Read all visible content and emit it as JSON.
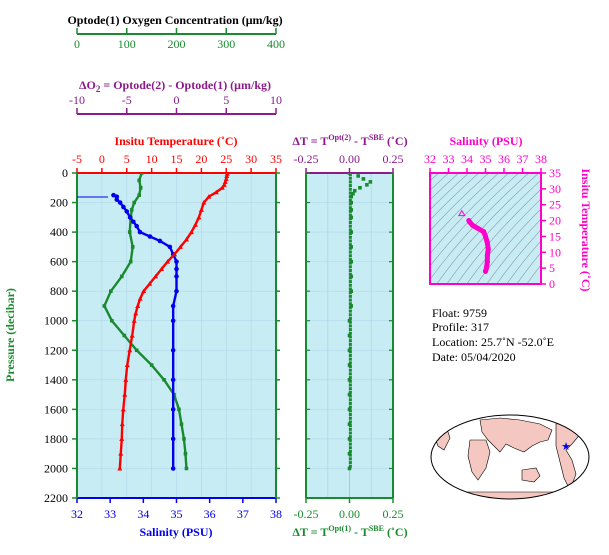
{
  "colors": {
    "green": "#1a8a2e",
    "purple": "#8b1a8b",
    "red": "#ff0000",
    "blue": "#0000ee",
    "magenta": "#ff00cc",
    "panel_bg": "#c8ecf4",
    "grid": "#b0d8e8",
    "black": "#000000",
    "land": "#f4c8c0",
    "ocean": "#ffffff"
  },
  "oxygen_axis": {
    "title": "Optode(1) Oxygen Concentration (μm/kg)",
    "ticks": [
      "0",
      "100",
      "200",
      "300",
      "400"
    ]
  },
  "delta_o2_axis": {
    "title_delta": "ΔO",
    "title_sub": "2",
    "title_rest": " = Optode(2) - Optode(1)   (μm/kg)",
    "ticks": [
      "-10",
      "-5",
      "0",
      "5",
      "10"
    ]
  },
  "temp_axis": {
    "title": "Insitu Temperature (˚C)",
    "ticks": [
      "-5",
      "0",
      "5",
      "10",
      "15",
      "20",
      "25",
      "30",
      "35"
    ]
  },
  "salinity_axis": {
    "title": "Salinity (PSU)",
    "ticks": [
      "32",
      "33",
      "34",
      "35",
      "36",
      "37",
      "38"
    ]
  },
  "pressure_axis": {
    "title": "Pressure (decibar)",
    "ticks": [
      "0",
      "200",
      "400",
      "600",
      "800",
      "1000",
      "1200",
      "1400",
      "1600",
      "1800",
      "2000",
      "2200"
    ]
  },
  "dt_top_axis": {
    "title_pre": "ΔT = T",
    "title_sup1": "Opt(2)",
    "title_mid": " - T",
    "title_sup2": "SBE",
    "title_post": " (˚C)",
    "ticks": [
      "-0.25",
      "0.00",
      "0.25"
    ]
  },
  "dt_bottom_axis": {
    "title_pre": "ΔT = T",
    "title_sup1": "Opt(1)",
    "title_mid": " - T",
    "title_sup2": "SBE",
    "title_post": " (˚C)",
    "ticks": [
      "-0.25",
      "0.00",
      "0.25"
    ]
  },
  "ts_panel": {
    "title": "Salinity (PSU)",
    "sal_ticks": [
      "32",
      "33",
      "34",
      "35",
      "36",
      "37",
      "38"
    ],
    "temp_title": "Insitu Temperature (˚C)",
    "temp_ticks": [
      "0",
      "5",
      "10",
      "15",
      "20",
      "25",
      "30",
      "35"
    ]
  },
  "info": {
    "float": "Float:  9759",
    "profile": "Profile:  317",
    "location": "Location:  25.7˚N  -52.0˚E",
    "date": "Date:  05/04/2020"
  },
  "chart_data": {
    "type": "line",
    "profiles": {
      "temperature": {
        "pressure": [
          5,
          20,
          40,
          60,
          80,
          100,
          130,
          160,
          200,
          250,
          300,
          350,
          400,
          450,
          500,
          550,
          600,
          650,
          700,
          750,
          800,
          850,
          900,
          950,
          1000,
          1100,
          1200,
          1300,
          1400,
          1500,
          1600,
          1700,
          1800,
          1900,
          2000
        ],
        "values": [
          25.2,
          25.1,
          25.0,
          24.8,
          24.6,
          24.2,
          23.0,
          21.5,
          20.5,
          20.0,
          19.5,
          18.8,
          18.0,
          17.0,
          15.8,
          14.6,
          13.2,
          12.0,
          10.8,
          9.6,
          8.4,
          7.7,
          7.2,
          6.8,
          6.5,
          6.1,
          5.6,
          5.1,
          4.8,
          4.6,
          4.3,
          4.1,
          4.0,
          3.8,
          3.6
        ]
      },
      "salinity": {
        "pressure": [
          150,
          160,
          180,
          200,
          230,
          260,
          300,
          330,
          360,
          400,
          430,
          460,
          500,
          550,
          600,
          650,
          700,
          800,
          900,
          1000,
          1200,
          1400,
          1600,
          1800,
          2000
        ],
        "values": [
          33.1,
          33.2,
          33.2,
          33.3,
          33.4,
          33.5,
          33.6,
          33.7,
          33.8,
          33.9,
          34.2,
          34.5,
          34.8,
          34.9,
          35.0,
          35.0,
          35.0,
          35.0,
          34.9,
          34.9,
          34.9,
          34.9,
          34.9,
          34.9,
          34.9
        ]
      },
      "oxygen": {
        "pressure": [
          0,
          50,
          100,
          150,
          200,
          250,
          300,
          400,
          500,
          600,
          700,
          800,
          900,
          1000,
          1100,
          1200,
          1300,
          1400,
          1500,
          1600,
          1700,
          1800,
          1900,
          2000
        ],
        "values": [
          130,
          125,
          128,
          125,
          115,
          110,
          108,
          106,
          112,
          108,
          90,
          68,
          55,
          70,
          95,
          120,
          150,
          175,
          195,
          205,
          210,
          215,
          218,
          220
        ]
      },
      "delta_t_opt1": {
        "pressure": [
          0,
          20,
          40,
          60,
          80,
          100,
          120,
          140,
          160,
          200,
          250,
          300,
          400,
          500,
          600,
          700,
          800,
          900,
          1000,
          1100,
          1200,
          1300,
          1400,
          1500,
          1600,
          1700,
          1800,
          1900,
          2000
        ],
        "values": [
          0.0,
          0.05,
          0.08,
          0.12,
          0.1,
          0.06,
          0.03,
          0.02,
          0.01,
          0.01,
          0.01,
          0.01,
          0.01,
          0.01,
          0.01,
          0.01,
          0.01,
          0.01,
          0.0,
          0.0,
          0.0,
          0.0,
          0.0,
          0.0,
          0.0,
          0.0,
          0.0,
          0.0,
          0.0
        ]
      },
      "ts": {
        "salinity": [
          34.1,
          34.15,
          34.3,
          34.6,
          34.9,
          35.0,
          35.1,
          35.15,
          35.1,
          35.1,
          35.05,
          35.0
        ],
        "temperature": [
          20.0,
          19.5,
          18.5,
          17.5,
          16.5,
          15.0,
          13.0,
          11.0,
          9.0,
          7.0,
          5.0,
          4.0
        ]
      }
    },
    "ranges": {
      "temperature": [
        -5,
        35
      ],
      "salinity": [
        32,
        38
      ],
      "oxygen": [
        0,
        400
      ],
      "delta_o2": [
        -10,
        10
      ],
      "pressure": [
        0,
        2200
      ],
      "delta_t": [
        -0.25,
        0.25
      ],
      "ts_temperature": [
        0,
        35
      ]
    }
  }
}
